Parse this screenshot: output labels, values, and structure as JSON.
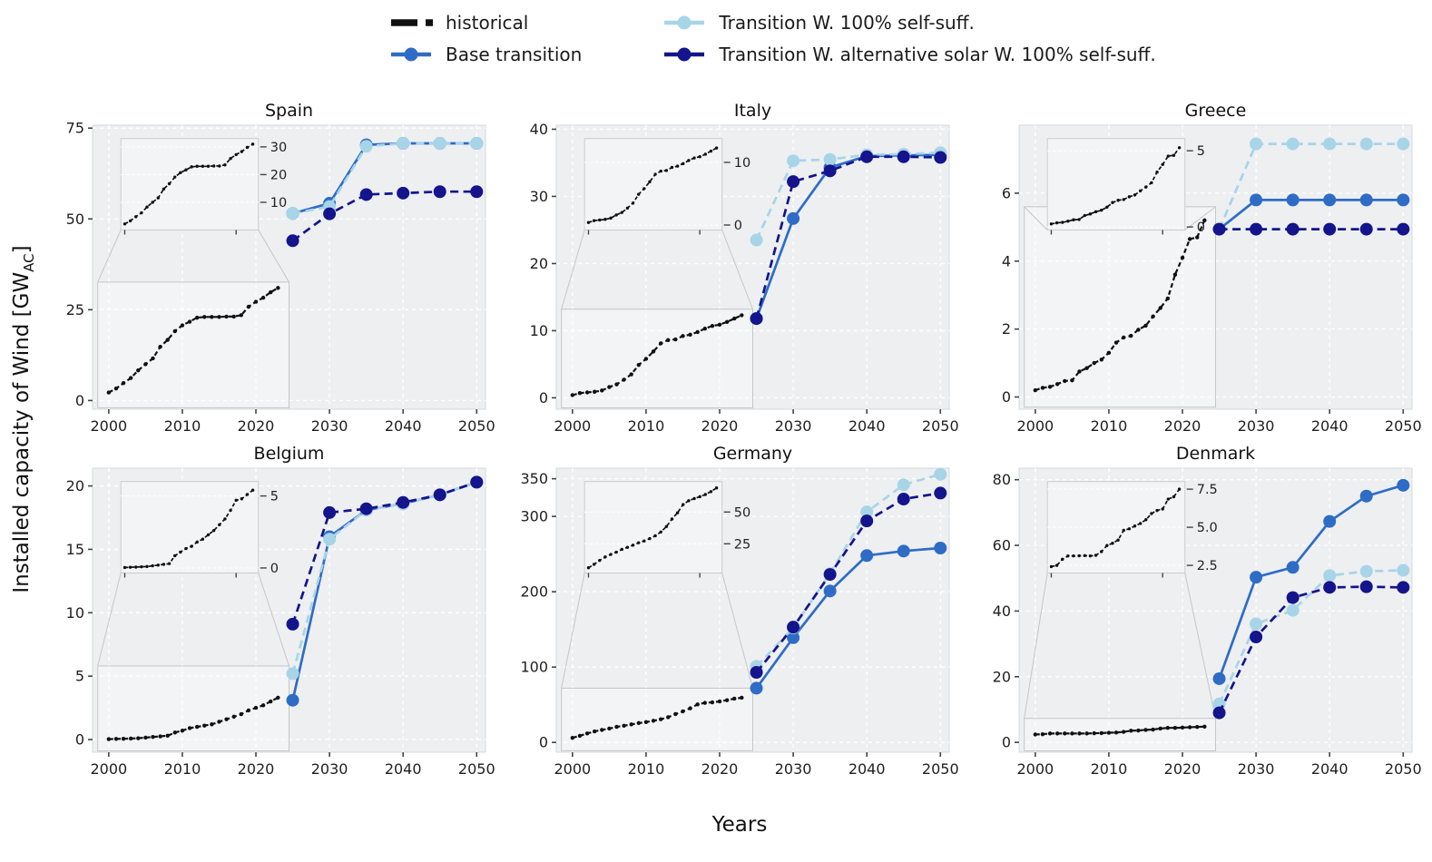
{
  "figure": {
    "ylabel_prefix": "Installed capacity of Wind [GW",
    "ylabel_sub": "AC",
    "ylabel_suffix": "]",
    "xlabel": "Years"
  },
  "colors": {
    "historical": "#101010",
    "base_transition": "#2e6cc6",
    "self_sufficient": "#a8d4e8",
    "alt_solar": "#14148c",
    "panel_bg": "#edeff1",
    "grid": "#ffffff",
    "inset_bg": "#f3f4f6"
  },
  "legend": {
    "items": [
      {
        "label": "historical",
        "color": "#101010",
        "style": "hist-dashed"
      },
      {
        "label": "Base transition",
        "color": "#2e6cc6",
        "style": "line-marker"
      },
      {
        "label": "Transition W. 100% self-suff.",
        "color": "#a8d4e8",
        "style": "line-marker"
      },
      {
        "label": "Transition W. alternative solar W. 100% self-suff.",
        "color": "#14148c",
        "style": "line-marker"
      }
    ]
  },
  "hist_years": [
    2000,
    2001,
    2002,
    2003,
    2004,
    2005,
    2006,
    2007,
    2008,
    2009,
    2010,
    2011,
    2012,
    2013,
    2014,
    2015,
    2016,
    2017,
    2018,
    2019,
    2020,
    2021,
    2022,
    2023
  ],
  "scenario_years": [
    2025,
    2030,
    2035,
    2040,
    2045,
    2050
  ],
  "chart_data": [
    {
      "title": "Spain",
      "type": "line",
      "xlim": [
        1997.8,
        2051.2
      ],
      "ylim": [
        -2.4,
        75.8
      ],
      "xticks": [
        2000,
        2010,
        2020,
        2030,
        2040,
        2050
      ],
      "yticks": [
        0,
        25,
        50,
        75
      ],
      "historical_main_gw": [
        2.2,
        3.3,
        4.8,
        6.2,
        8.3,
        10.0,
        11.6,
        14.8,
        16.7,
        19.1,
        20.7,
        21.7,
        22.8,
        23.0,
        23.0,
        23.0,
        23.1,
        23.1,
        23.5,
        25.8,
        27.2,
        28.3,
        29.8,
        31.0
      ],
      "inset": {
        "ylim": [
          0,
          33
        ],
        "ytick_labels": [
          "10",
          "20",
          "30"
        ],
        "src_rect": [
          1998.5,
          2024.5,
          -2.0,
          32.6
        ],
        "historical_total_gw": [
          2.2,
          3.3,
          4.8,
          6.2,
          8.3,
          10.0,
          11.6,
          14.8,
          16.7,
          19.1,
          20.7,
          21.7,
          22.8,
          23.0,
          23.0,
          23.0,
          23.1,
          23.1,
          23.5,
          25.8,
          27.2,
          28.3,
          29.8,
          31.0
        ]
      },
      "series": [
        {
          "name": "Base transition",
          "color": "#2e6cc6",
          "style": "solid",
          "values": [
            51.5,
            54.3,
            70.4,
            70.8,
            70.8,
            70.8
          ]
        },
        {
          "name": "Transition W. 100% self-suff.",
          "color": "#a8d4e8",
          "style": "dashed",
          "values": [
            51.5,
            53.4,
            70.0,
            70.8,
            70.8,
            70.8
          ]
        },
        {
          "name": "Transition W. alternative solar W. 100% self-suff.",
          "color": "#14148c",
          "style": "dashed",
          "values": [
            44.0,
            51.4,
            56.7,
            57.1,
            57.5,
            57.5
          ]
        }
      ]
    },
    {
      "title": "Italy",
      "type": "line",
      "xlim": [
        1997.8,
        2051.2
      ],
      "ylim": [
        -1.7,
        40.6
      ],
      "xticks": [
        2000,
        2010,
        2020,
        2030,
        2040,
        2050
      ],
      "yticks": [
        0,
        10,
        20,
        30,
        40
      ],
      "historical_main_gw": [
        0.4,
        0.7,
        0.8,
        0.9,
        1.1,
        1.6,
        2.0,
        2.7,
        3.5,
        4.9,
        5.8,
        6.9,
        8.1,
        8.6,
        8.7,
        9.2,
        9.4,
        9.8,
        10.3,
        10.7,
        10.9,
        11.3,
        11.8,
        12.3
      ],
      "inset": {
        "ylim": [
          -0.8,
          13.8
        ],
        "ytick_labels": [
          "0",
          "10"
        ],
        "src_rect": [
          1998.5,
          2024.5,
          -1.5,
          13.2
        ],
        "historical_total_gw": [
          0.4,
          0.7,
          0.8,
          0.9,
          1.1,
          1.6,
          2.0,
          2.7,
          3.5,
          4.9,
          5.8,
          6.9,
          8.1,
          8.6,
          8.7,
          9.2,
          9.4,
          9.8,
          10.3,
          10.7,
          10.9,
          11.3,
          11.8,
          12.3
        ]
      },
      "series": [
        {
          "name": "Base transition",
          "color": "#2e6cc6",
          "style": "solid",
          "values": [
            11.8,
            26.7,
            34.3,
            36.0,
            36.1,
            36.2
          ]
        },
        {
          "name": "Transition W. 100% self-suff.",
          "color": "#a8d4e8",
          "style": "dashed",
          "values": [
            23.5,
            35.3,
            35.5,
            36.2,
            36.3,
            36.5
          ]
        },
        {
          "name": "Transition W. alternative solar W. 100% self-suff.",
          "color": "#14148c",
          "style": "dashed",
          "values": [
            11.8,
            32.2,
            33.8,
            35.9,
            35.9,
            35.8
          ]
        }
      ]
    },
    {
      "title": "Greece",
      "type": "line",
      "xlim": [
        1997.8,
        2051.2
      ],
      "ylim": [
        -0.36,
        8.0
      ],
      "xticks": [
        2000,
        2010,
        2020,
        2030,
        2040,
        2050
      ],
      "yticks": [
        0,
        2,
        4,
        6
      ],
      "historical_main_gw": [
        0.2,
        0.27,
        0.3,
        0.38,
        0.47,
        0.49,
        0.75,
        0.85,
        1.0,
        1.1,
        1.3,
        1.6,
        1.75,
        1.8,
        1.98,
        2.1,
        2.37,
        2.62,
        2.9,
        3.6,
        4.1,
        4.65,
        4.7,
        5.2
      ],
      "inset": {
        "ylim": [
          -0.2,
          5.8
        ],
        "ytick_labels": [
          "0",
          "5"
        ],
        "src_rect": [
          1998.5,
          2024.5,
          -0.3,
          5.6
        ],
        "historical_total_gw": [
          0.2,
          0.27,
          0.3,
          0.38,
          0.47,
          0.49,
          0.75,
          0.85,
          1.0,
          1.1,
          1.3,
          1.6,
          1.75,
          1.8,
          1.98,
          2.1,
          2.37,
          2.62,
          2.9,
          3.6,
          4.1,
          4.65,
          4.7,
          5.2
        ]
      },
      "series": [
        {
          "name": "Base transition",
          "color": "#2e6cc6",
          "style": "solid",
          "values": [
            4.94,
            5.8,
            5.8,
            5.8,
            5.8,
            5.8
          ]
        },
        {
          "name": "Transition W. 100% self-suff.",
          "color": "#a8d4e8",
          "style": "dashed",
          "values": [
            4.94,
            7.45,
            7.45,
            7.45,
            7.45,
            7.45
          ]
        },
        {
          "name": "Transition W. alternative solar W. 100% self-suff.",
          "color": "#14148c",
          "style": "dashed",
          "values": [
            4.94,
            4.94,
            4.94,
            4.94,
            4.94,
            4.94
          ]
        }
      ]
    },
    {
      "title": "Belgium",
      "type": "line",
      "xlim": [
        1997.8,
        2051.2
      ],
      "ylim": [
        -1.0,
        21.4
      ],
      "xticks": [
        2000,
        2010,
        2020,
        2030,
        2040,
        2050
      ],
      "yticks": [
        0,
        5,
        10,
        15,
        20
      ],
      "historical_main_gw": [
        0.03,
        0.05,
        0.06,
        0.08,
        0.1,
        0.15,
        0.2,
        0.25,
        0.3,
        0.55,
        0.7,
        0.9,
        1.0,
        1.1,
        1.2,
        1.4,
        1.6,
        1.8,
        2.0,
        2.3,
        2.5,
        2.7,
        3.0,
        3.3
      ],
      "inset": {
        "ylim": [
          -0.35,
          6.0
        ],
        "ytick_labels": [
          "0",
          "5"
        ],
        "src_rect": [
          1998.5,
          2024.5,
          -0.9,
          5.8
        ],
        "historical_total_gw": [
          0.03,
          0.05,
          0.06,
          0.08,
          0.1,
          0.15,
          0.2,
          0.25,
          0.3,
          0.85,
          1.1,
          1.35,
          1.5,
          1.8,
          2.0,
          2.3,
          2.6,
          3.0,
          3.4,
          4.0,
          4.7,
          4.8,
          5.1,
          5.4
        ]
      },
      "series": [
        {
          "name": "Base transition",
          "color": "#2e6cc6",
          "style": "solid",
          "values": [
            3.1,
            16.0,
            18.1,
            18.6,
            19.3,
            20.3
          ]
        },
        {
          "name": "Transition W. 100% self-suff.",
          "color": "#a8d4e8",
          "style": "dashed",
          "values": [
            5.2,
            15.8,
            18.1,
            18.6,
            19.3,
            20.3
          ]
        },
        {
          "name": "Transition W. alternative solar W. 100% self-suff.",
          "color": "#14148c",
          "style": "dashed",
          "values": [
            9.1,
            17.9,
            18.2,
            18.7,
            19.3,
            20.3
          ]
        }
      ]
    },
    {
      "title": "Germany",
      "type": "line",
      "xlim": [
        1997.8,
        2051.2
      ],
      "ylim": [
        -13,
        364
      ],
      "xticks": [
        2000,
        2010,
        2020,
        2030,
        2040,
        2050
      ],
      "yticks": [
        0,
        100,
        200,
        300,
        350
      ],
      "historical_main_gw": [
        6.1,
        8.8,
        11.9,
        14.6,
        16.6,
        18.4,
        20.6,
        22.2,
        23.9,
        25.7,
        27.0,
        28.7,
        30.7,
        33.5,
        37.6,
        41.2,
        45.3,
        50.5,
        52.5,
        53.2,
        54.4,
        56.0,
        58.1,
        59.3
      ],
      "inset": {
        "ylim": [
          2,
          74
        ],
        "ytick_labels": [
          "25",
          "50"
        ],
        "src_rect": [
          1998.5,
          2024.5,
          -11,
          72
        ],
        "historical_total_gw": [
          6.1,
          8.8,
          11.9,
          14.6,
          16.6,
          18.4,
          20.6,
          22.2,
          23.9,
          25.8,
          27.2,
          29.1,
          31.3,
          34.3,
          38.6,
          44.5,
          49.4,
          55.9,
          58.9,
          60.6,
          62.1,
          63.8,
          66.1,
          69.0
        ]
      },
      "series": [
        {
          "name": "Base transition",
          "color": "#2e6cc6",
          "style": "solid",
          "values": [
            72,
            139,
            201,
            248,
            254,
            258
          ]
        },
        {
          "name": "Transition W. 100% self-suff.",
          "color": "#a8d4e8",
          "style": "dashed",
          "values": [
            101,
            152,
            224,
            306,
            342,
            356
          ]
        },
        {
          "name": "Transition W. alternative solar W. 100% self-suff.",
          "color": "#14148c",
          "style": "dashed",
          "values": [
            93,
            153,
            223,
            294,
            323,
            331
          ]
        }
      ]
    },
    {
      "title": "Denmark",
      "type": "line",
      "xlim": [
        1997.8,
        2051.2
      ],
      "ylim": [
        -3,
        83.5
      ],
      "xticks": [
        2000,
        2010,
        2020,
        2030,
        2040,
        2050
      ],
      "yticks": [
        0,
        20,
        40,
        60,
        80
      ],
      "historical_main_gw": [
        2.42,
        2.48,
        2.7,
        2.7,
        2.7,
        2.7,
        2.7,
        2.7,
        2.77,
        2.82,
        2.93,
        3.0,
        3.2,
        3.55,
        3.6,
        3.8,
        3.9,
        4.2,
        4.4,
        4.4,
        4.5,
        4.6,
        4.7,
        4.8
      ],
      "inset": {
        "ylim": [
          2.0,
          8.0
        ],
        "ytick_labels": [
          "2.5",
          "5.0",
          "7.5"
        ],
        "src_rect": [
          1998.5,
          2024.5,
          -2.6,
          7.3
        ],
        "historical_total_gw": [
          2.42,
          2.5,
          2.9,
          3.12,
          3.12,
          3.13,
          3.14,
          3.12,
          3.16,
          3.4,
          3.8,
          3.95,
          4.16,
          4.8,
          4.9,
          5.08,
          5.25,
          5.5,
          5.9,
          6.1,
          6.2,
          6.85,
          7.0,
          7.5
        ]
      },
      "series": [
        {
          "name": "Base transition",
          "color": "#2e6cc6",
          "style": "solid",
          "values": [
            19.4,
            50.3,
            53.3,
            67.3,
            75.0,
            78.3
          ]
        },
        {
          "name": "Transition W. 100% self-suff.",
          "color": "#a8d4e8",
          "style": "dashed",
          "values": [
            11.7,
            36.1,
            40.2,
            50.8,
            52.1,
            52.4
          ]
        },
        {
          "name": "Transition W. alternative solar W. 100% self-suff.",
          "color": "#14148c",
          "style": "dashed",
          "values": [
            9.0,
            32.1,
            44.1,
            47.2,
            47.4,
            47.2
          ]
        }
      ]
    }
  ]
}
